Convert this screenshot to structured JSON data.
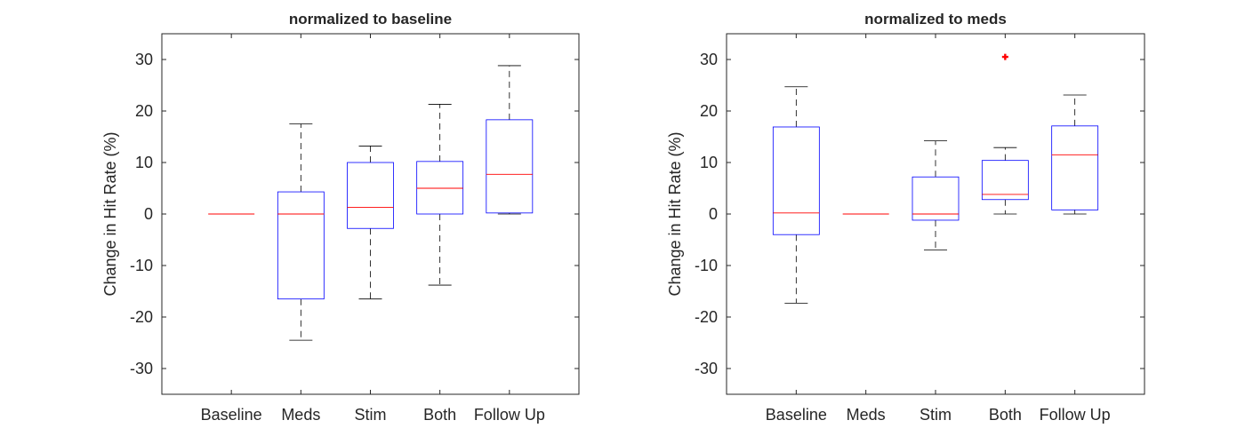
{
  "chart_data": [
    {
      "type": "box",
      "title": "normalized to baseline",
      "ylabel": "Change in Hit Rate (%)",
      "xlabel": "",
      "ylim": [
        -35,
        35
      ],
      "yticks": [
        -30,
        -20,
        -10,
        0,
        10,
        20,
        30
      ],
      "categories": [
        "Baseline",
        "Meds",
        "Stim",
        "Both",
        "Follow Up"
      ],
      "boxes": [
        {
          "min": 0,
          "q1": 0,
          "median": 0,
          "q3": 0,
          "max": 0,
          "outliers": []
        },
        {
          "min": -24.5,
          "q1": -16.5,
          "median": 0,
          "q3": 4.3,
          "max": 17.5,
          "outliers": []
        },
        {
          "min": -16.5,
          "q1": -2.8,
          "median": 1.3,
          "q3": 10.0,
          "max": 13.2,
          "outliers": []
        },
        {
          "min": -13.8,
          "q1": 0,
          "median": 5.0,
          "q3": 10.2,
          "max": 21.3,
          "outliers": []
        },
        {
          "min": 0,
          "q1": 0.2,
          "median": 7.7,
          "q3": 18.3,
          "max": 28.8,
          "outliers": []
        }
      ],
      "colors": {
        "box": "#0000ff",
        "median": "#ff0000",
        "whisker": "#000000",
        "outlier": "#ff0000"
      }
    },
    {
      "type": "box",
      "title": "normalized to meds",
      "ylabel": "Change in Hit Rate (%)",
      "xlabel": "",
      "ylim": [
        -35,
        35
      ],
      "yticks": [
        -30,
        -20,
        -10,
        0,
        10,
        20,
        30
      ],
      "categories": [
        "Baseline",
        "Meds",
        "Stim",
        "Both",
        "Follow Up"
      ],
      "boxes": [
        {
          "min": -17.3,
          "q1": -4.0,
          "median": 0.2,
          "q3": 16.9,
          "max": 24.7,
          "outliers": []
        },
        {
          "min": 0,
          "q1": 0,
          "median": 0,
          "q3": 0,
          "max": 0,
          "outliers": []
        },
        {
          "min": -7.0,
          "q1": -1.2,
          "median": 0,
          "q3": 7.2,
          "max": 14.2,
          "outliers": []
        },
        {
          "min": 0,
          "q1": 2.8,
          "median": 3.8,
          "q3": 10.4,
          "max": 12.9,
          "outliers": [
            30.5
          ]
        },
        {
          "min": 0,
          "q1": 0.8,
          "median": 11.5,
          "q3": 17.1,
          "max": 23.1,
          "outliers": []
        }
      ],
      "colors": {
        "box": "#0000ff",
        "median": "#ff0000",
        "whisker": "#000000",
        "outlier": "#ff0000"
      }
    }
  ]
}
